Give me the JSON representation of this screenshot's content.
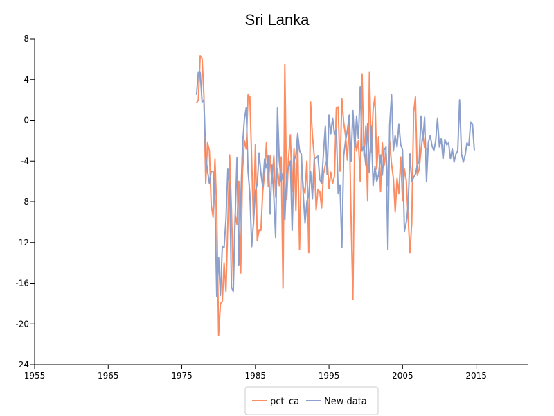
{
  "chart_data": {
    "type": "line",
    "title": "Sri Lanka",
    "xlabel": "",
    "ylabel": "",
    "xlim": [
      1955,
      2022
    ],
    "ylim": [
      -24,
      8
    ],
    "x_ticks": [
      1955,
      1965,
      1975,
      1985,
      1995,
      2005,
      2015
    ],
    "y_ticks": [
      8,
      4,
      0,
      -4,
      -8,
      -12,
      -16,
      -20,
      -24
    ],
    "grid": false,
    "legend_position": "bottom-center",
    "series": [
      {
        "name": "pct_ca",
        "color": "#fc8d62",
        "points": [
          [
            1977.0,
            1.7
          ],
          [
            1977.25,
            2.0
          ],
          [
            1977.5,
            6.3
          ],
          [
            1977.75,
            6.1
          ],
          [
            1978.0,
            2.5
          ],
          [
            1978.25,
            -6.2
          ],
          [
            1978.5,
            -2.2
          ],
          [
            1978.75,
            -3.0
          ],
          [
            1979.0,
            -8.3
          ],
          [
            1979.25,
            -9.5
          ],
          [
            1979.5,
            -3.8
          ],
          [
            1979.75,
            -9.0
          ],
          [
            1980.0,
            -21.1
          ],
          [
            1980.25,
            -18.0
          ],
          [
            1980.5,
            -17.8
          ],
          [
            1980.75,
            -14.0
          ],
          [
            1981.0,
            -16.8
          ],
          [
            1981.25,
            -10.0
          ],
          [
            1981.5,
            -3.4
          ],
          [
            1981.75,
            -9.0
          ],
          [
            1982.0,
            -15.8
          ],
          [
            1982.25,
            -9.3
          ],
          [
            1982.5,
            -10.2
          ],
          [
            1982.75,
            -6.0
          ],
          [
            1983.0,
            -15.0
          ],
          [
            1983.25,
            -5.0
          ],
          [
            1983.5,
            -2.0
          ],
          [
            1983.75,
            -2.8
          ],
          [
            1984.0,
            2.5
          ],
          [
            1984.25,
            2.3
          ],
          [
            1984.5,
            -4.0
          ],
          [
            1984.75,
            -10.2
          ],
          [
            1985.0,
            -2.4
          ],
          [
            1985.25,
            -11.8
          ],
          [
            1985.5,
            -10.8
          ],
          [
            1985.75,
            -10.8
          ],
          [
            1986.0,
            -7.0
          ],
          [
            1986.25,
            -5.2
          ],
          [
            1986.5,
            -2.2
          ],
          [
            1986.75,
            -6.5
          ],
          [
            1987.0,
            -3.5
          ],
          [
            1987.25,
            -6.2
          ],
          [
            1987.5,
            -3.5
          ],
          [
            1987.75,
            -7.5
          ],
          [
            1988.0,
            -4.8
          ],
          [
            1988.25,
            -6.4
          ],
          [
            1988.5,
            -3.6
          ],
          [
            1988.75,
            -16.5
          ],
          [
            1989.0,
            5.5
          ],
          [
            1989.25,
            -7.8
          ],
          [
            1989.5,
            -3.8
          ],
          [
            1989.75,
            -1.4
          ],
          [
            1990.0,
            -7.0
          ],
          [
            1990.25,
            -2.8
          ],
          [
            1990.5,
            -8.9
          ],
          [
            1990.75,
            -2.0
          ],
          [
            1991.0,
            -12.7
          ],
          [
            1991.25,
            -4.4
          ],
          [
            1991.5,
            -6.5
          ],
          [
            1991.75,
            -7.2
          ],
          [
            1992.0,
            -4.0
          ],
          [
            1992.25,
            -13.0
          ],
          [
            1992.5,
            1.8
          ],
          [
            1992.75,
            -1.5
          ],
          [
            1993.0,
            -3.5
          ],
          [
            1993.25,
            -8.8
          ],
          [
            1993.5,
            -6.8
          ],
          [
            1993.75,
            -7.0
          ],
          [
            1994.0,
            -8.6
          ],
          [
            1994.25,
            -5.3
          ],
          [
            1994.5,
            -4.4
          ],
          [
            1994.75,
            -3.8
          ],
          [
            1995.0,
            -6.7
          ],
          [
            1995.25,
            -5.1
          ],
          [
            1995.5,
            -6.2
          ],
          [
            1995.75,
            -5.5
          ],
          [
            1996.0,
            1.2
          ],
          [
            1996.25,
            1.3
          ],
          [
            1996.5,
            -5.0
          ],
          [
            1996.75,
            2.1
          ],
          [
            1997.0,
            -0.2
          ],
          [
            1997.25,
            -1.5
          ],
          [
            1997.5,
            -3.9
          ],
          [
            1997.75,
            -0.3
          ],
          [
            1998.0,
            -9.6
          ],
          [
            1998.25,
            -17.6
          ],
          [
            1998.5,
            -1.6
          ],
          [
            1998.75,
            -3.0
          ],
          [
            1999.0,
            -2.0
          ],
          [
            1999.25,
            -6.0
          ],
          [
            1999.5,
            4.5
          ],
          [
            1999.75,
            -3.5
          ],
          [
            2000.0,
            -0.6
          ],
          [
            2000.25,
            -7.9
          ],
          [
            2000.5,
            4.7
          ],
          [
            2000.75,
            -3.1
          ],
          [
            2001.0,
            1.0
          ],
          [
            2001.25,
            2.4
          ],
          [
            2001.5,
            -4.8
          ],
          [
            2001.75,
            -1.6
          ],
          [
            2002.0,
            -7.0
          ],
          [
            2002.25,
            -2.2
          ],
          [
            2002.5,
            -4.4
          ],
          [
            2002.75,
            -3.0
          ],
          [
            2003.0,
            -6.4
          ],
          [
            2003.25,
            -2.0
          ],
          [
            2003.5,
            -4.3
          ],
          [
            2003.75,
            -5.7
          ],
          [
            2004.0,
            -9.0
          ],
          [
            2004.25,
            -5.7
          ],
          [
            2004.5,
            -7.2
          ],
          [
            2004.75,
            -3.6
          ],
          [
            2005.0,
            -7.9
          ],
          [
            2005.25,
            -4.8
          ],
          [
            2005.5,
            -5.9
          ],
          [
            2005.75,
            -9.5
          ],
          [
            2006.0,
            -13.0
          ],
          [
            2006.25,
            -10.0
          ],
          [
            2006.5,
            0.7
          ],
          [
            2006.75,
            2.3
          ],
          [
            2007.0,
            -5.4
          ],
          [
            2007.25,
            -4.8
          ],
          [
            2007.5,
            -3.0
          ],
          [
            2007.75,
            -1.3
          ],
          [
            2008.0,
            -2.7
          ],
          [
            2008.25,
            -2.9
          ]
        ]
      },
      {
        "name": "New data",
        "color": "#8da0cb",
        "points": [
          [
            1977.0,
            2.5
          ],
          [
            1977.25,
            4.7
          ],
          [
            1977.5,
            4.7
          ],
          [
            1977.75,
            1.8
          ],
          [
            1978.0,
            2.0
          ],
          [
            1978.25,
            -3.5
          ],
          [
            1978.5,
            -5.0
          ],
          [
            1978.75,
            -6.2
          ],
          [
            1979.0,
            -5.0
          ],
          [
            1979.25,
            -5.0
          ],
          [
            1979.5,
            -8.0
          ],
          [
            1979.75,
            -17.3
          ],
          [
            1980.0,
            -13.5
          ],
          [
            1980.25,
            -17.2
          ],
          [
            1980.5,
            -12.4
          ],
          [
            1980.75,
            -12.5
          ],
          [
            1981.0,
            -9.7
          ],
          [
            1981.25,
            -4.8
          ],
          [
            1981.5,
            -6.6
          ],
          [
            1981.75,
            -16.4
          ],
          [
            1982.0,
            -16.8
          ],
          [
            1982.25,
            -9.5
          ],
          [
            1982.5,
            -3.7
          ],
          [
            1982.75,
            -14.2
          ],
          [
            1983.0,
            -8.0
          ],
          [
            1983.25,
            -2.5
          ],
          [
            1983.5,
            0.1
          ],
          [
            1983.75,
            1.2
          ],
          [
            1984.0,
            -5.0
          ],
          [
            1984.25,
            -7.2
          ],
          [
            1984.5,
            -12.4
          ],
          [
            1984.75,
            -10.0
          ],
          [
            1985.0,
            -7.0
          ],
          [
            1985.25,
            -6.2
          ],
          [
            1985.5,
            -3.2
          ],
          [
            1985.75,
            -5.2
          ],
          [
            1986.0,
            -6.5
          ],
          [
            1986.25,
            -3.8
          ],
          [
            1986.5,
            -4.7
          ],
          [
            1986.75,
            -3.5
          ],
          [
            1987.0,
            -9.2
          ],
          [
            1987.25,
            -4.4
          ],
          [
            1987.5,
            -7.5
          ],
          [
            1987.75,
            -11.5
          ],
          [
            1988.0,
            1.2
          ],
          [
            1988.25,
            -4.0
          ],
          [
            1988.5,
            -6.0
          ],
          [
            1988.75,
            -5.2
          ],
          [
            1989.0,
            -9.8
          ],
          [
            1989.25,
            -5.2
          ],
          [
            1989.5,
            -4.7
          ],
          [
            1989.75,
            -4.0
          ],
          [
            1990.0,
            -10.8
          ],
          [
            1990.25,
            -4.0
          ],
          [
            1990.5,
            -3.4
          ],
          [
            1990.75,
            -1.3
          ],
          [
            1991.0,
            -3.0
          ],
          [
            1991.25,
            -3.3
          ],
          [
            1991.5,
            -7.3
          ],
          [
            1991.75,
            -10.1
          ],
          [
            1992.0,
            -8.0
          ],
          [
            1992.25,
            -7.3
          ],
          [
            1992.5,
            -5.0
          ],
          [
            1992.75,
            -7.7
          ],
          [
            1993.0,
            -3.8
          ],
          [
            1993.25,
            -3.7
          ],
          [
            1993.5,
            -3.5
          ],
          [
            1993.75,
            -5.8
          ],
          [
            1994.0,
            -6.2
          ],
          [
            1994.25,
            -3.2
          ],
          [
            1994.5,
            -0.6
          ],
          [
            1994.75,
            -5.3
          ],
          [
            1995.0,
            0.5
          ],
          [
            1995.25,
            -1.3
          ],
          [
            1995.5,
            0.2
          ],
          [
            1995.75,
            -1.4
          ],
          [
            1996.0,
            -0.9
          ],
          [
            1996.25,
            -7.2
          ],
          [
            1996.5,
            -6.4
          ],
          [
            1996.75,
            -12.5
          ],
          [
            1997.0,
            -3.5
          ],
          [
            1997.25,
            -2.0
          ],
          [
            1997.5,
            -1.0
          ],
          [
            1997.75,
            0.5
          ],
          [
            1998.0,
            -4.0
          ],
          [
            1998.25,
            1.0
          ],
          [
            1998.5,
            -2.7
          ],
          [
            1998.75,
            0.4
          ],
          [
            1999.0,
            -1.8
          ],
          [
            1999.25,
            3.3
          ],
          [
            1999.5,
            -3.0
          ],
          [
            1999.75,
            -2.5
          ],
          [
            2000.0,
            -4.4
          ],
          [
            2000.25,
            -0.3
          ],
          [
            2000.5,
            -5.1
          ],
          [
            2000.75,
            -0.6
          ],
          [
            2001.0,
            -6.4
          ],
          [
            2001.25,
            -4.5
          ],
          [
            2001.5,
            -6.0
          ],
          [
            2001.75,
            -5.3
          ],
          [
            2002.0,
            -3.4
          ],
          [
            2002.25,
            -5.4
          ],
          [
            2002.5,
            -2.9
          ],
          [
            2002.75,
            -2.6
          ],
          [
            2003.0,
            -12.7
          ],
          [
            2003.25,
            -0.5
          ],
          [
            2003.5,
            2.5
          ],
          [
            2003.75,
            -3.0
          ],
          [
            2004.0,
            -1.5
          ],
          [
            2004.25,
            -2.6
          ],
          [
            2004.5,
            -0.4
          ],
          [
            2004.75,
            -2.4
          ],
          [
            2005.0,
            -2.9
          ],
          [
            2005.25,
            -10.9
          ],
          [
            2005.5,
            -10.0
          ],
          [
            2005.75,
            -8.5
          ],
          [
            2006.0,
            -3.3
          ],
          [
            2006.25,
            -6.0
          ],
          [
            2006.5,
            -5.6
          ],
          [
            2006.75,
            -5.3
          ],
          [
            2007.0,
            -4.4
          ],
          [
            2007.25,
            -4.0
          ],
          [
            2007.5,
            0.4
          ],
          [
            2007.75,
            -2.0
          ],
          [
            2008.0,
            0.3
          ],
          [
            2008.25,
            -6.0
          ],
          [
            2008.5,
            -2.2
          ],
          [
            2008.75,
            -1.5
          ],
          [
            2009.0,
            -2.5
          ],
          [
            2009.25,
            -3.0
          ],
          [
            2009.5,
            -2.0
          ],
          [
            2009.75,
            0.2
          ],
          [
            2010.0,
            -2.6
          ],
          [
            2010.25,
            -1.8
          ],
          [
            2010.5,
            -3.8
          ],
          [
            2010.75,
            -1.9
          ],
          [
            2011.0,
            -2.4
          ],
          [
            2011.25,
            -2.2
          ],
          [
            2011.5,
            -3.8
          ],
          [
            2011.75,
            -2.8
          ],
          [
            2012.0,
            -4.1
          ],
          [
            2012.25,
            -3.3
          ],
          [
            2012.5,
            -3.0
          ],
          [
            2012.75,
            2.0
          ],
          [
            2013.0,
            -3.3
          ],
          [
            2013.25,
            -4.1
          ],
          [
            2013.5,
            -3.4
          ],
          [
            2013.75,
            -2.2
          ],
          [
            2014.0,
            -2.5
          ],
          [
            2014.25,
            -0.2
          ],
          [
            2014.5,
            -0.4
          ],
          [
            2014.75,
            -3.0
          ]
        ]
      }
    ]
  }
}
